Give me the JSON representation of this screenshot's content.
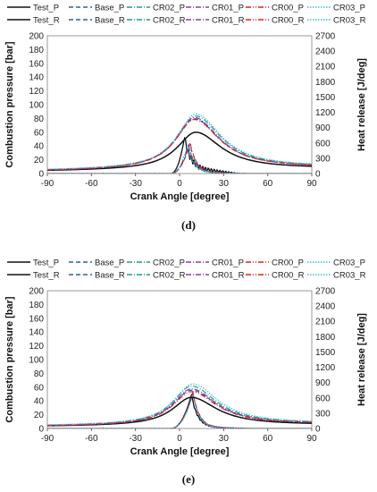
{
  "chart_data": [
    {
      "type": "line",
      "panel_label": "(d)",
      "xlabel": "Crank Angle [degree]",
      "ylabel": "Combustion pressure [bar]",
      "y2label": "Heat release [J/deg]",
      "xlim": [
        -90,
        90
      ],
      "ylim": [
        0,
        200
      ],
      "y2lim": [
        0,
        2700
      ],
      "xticks": [
        "-90",
        "-60",
        "-30",
        "0",
        "30",
        "60",
        "90"
      ],
      "yticks": [
        "0",
        "20",
        "40",
        "60",
        "80",
        "100",
        "120",
        "140",
        "160",
        "180",
        "200"
      ],
      "y2ticks": [
        "0",
        "300",
        "600",
        "900",
        "1200",
        "1500",
        "1800",
        "2100",
        "2400",
        "2700"
      ],
      "legend": [
        "Test_P",
        "Base_P",
        "CR02_P",
        "CR01_P",
        "CR00_P",
        "CR03_P",
        "Test_R",
        "Base_R",
        "CR02_R",
        "CR01_R",
        "CR00_R",
        "CR03_R"
      ],
      "pressure_series": [
        {
          "name": "Test_P",
          "peak": 58,
          "peak_x": 11,
          "base": 3.5,
          "end": 7
        },
        {
          "name": "Base_P",
          "peak": 77,
          "peak_x": 10,
          "base": 3.5,
          "end": 8
        },
        {
          "name": "CR02_P",
          "peak": 81,
          "peak_x": 11,
          "base": 4,
          "end": 8.5
        },
        {
          "name": "CR01_P",
          "peak": 79,
          "peak_x": 10,
          "base": 3.8,
          "end": 8
        },
        {
          "name": "CR00_P",
          "peak": 76,
          "peak_x": 10,
          "base": 3.5,
          "end": 8
        },
        {
          "name": "CR03_P",
          "peak": 84,
          "peak_x": 11,
          "base": 4.5,
          "end": 9
        }
      ],
      "heat_release_series": [
        {
          "name": "Test_R",
          "peak": 650,
          "peak_x": 3
        },
        {
          "name": "Base_R",
          "peak": 580,
          "peak_x": 7
        },
        {
          "name": "CR02_R",
          "peak": 540,
          "peak_x": 6
        },
        {
          "name": "CR01_R",
          "peak": 560,
          "peak_x": 6
        },
        {
          "name": "CR00_R",
          "peak": 600,
          "peak_x": 7
        },
        {
          "name": "CR03_R",
          "peak": 520,
          "peak_x": 5
        }
      ]
    },
    {
      "type": "line",
      "panel_label": "(e)",
      "xlabel": "Crank Angle [degree]",
      "ylabel": "Combustion pressure [bar]",
      "y2label": "Heat release [J/deg]",
      "xlim": [
        -90,
        90
      ],
      "ylim": [
        0,
        200
      ],
      "y2lim": [
        0,
        2700
      ],
      "xticks": [
        "-90",
        "-60",
        "-30",
        "0",
        "30",
        "60",
        "90"
      ],
      "yticks": [
        "0",
        "20",
        "40",
        "60",
        "80",
        "100",
        "120",
        "140",
        "160",
        "180",
        "200"
      ],
      "y2ticks": [
        "0",
        "300",
        "600",
        "900",
        "1200",
        "1500",
        "1800",
        "2100",
        "2400",
        "2700"
      ],
      "legend": [
        "Test_P",
        "Base_P",
        "CR02_P",
        "CR01_P",
        "CR00_P",
        "CR03_P",
        "Test_R",
        "Base_R",
        "CR02_R",
        "CR01_R",
        "CR00_R",
        "CR03_R"
      ],
      "pressure_series": [
        {
          "name": "Test_P",
          "peak": 44,
          "peak_x": 8,
          "base": 3,
          "end": 5
        },
        {
          "name": "Base_P",
          "peak": 54,
          "peak_x": 8,
          "base": 3,
          "end": 6
        },
        {
          "name": "CR02_P",
          "peak": 60,
          "peak_x": 8,
          "base": 3.5,
          "end": 6.5
        },
        {
          "name": "CR01_P",
          "peak": 56,
          "peak_x": 8,
          "base": 3.2,
          "end": 6
        },
        {
          "name": "CR00_P",
          "peak": 52,
          "peak_x": 8,
          "base": 3,
          "end": 5.8
        },
        {
          "name": "CR03_P",
          "peak": 63,
          "peak_x": 9,
          "base": 4,
          "end": 7
        }
      ],
      "heat_release_series": [
        {
          "name": "Test_R",
          "peak": 650,
          "peak_x": 8
        },
        {
          "name": "Base_R",
          "peak": 700,
          "peak_x": 9
        },
        {
          "name": "CR02_R",
          "peak": 680,
          "peak_x": 9
        },
        {
          "name": "CR01_R",
          "peak": 690,
          "peak_x": 9
        },
        {
          "name": "CR00_R",
          "peak": 710,
          "peak_x": 9
        },
        {
          "name": "CR03_R",
          "peak": 660,
          "peak_x": 9
        }
      ]
    }
  ],
  "series_style": {
    "Test": {
      "color": "#111111",
      "dash": ""
    },
    "Base": {
      "color": "#2f5fa8",
      "dash": "5,3"
    },
    "CR02": {
      "color": "#1a9e8a",
      "dash": "6,2,1,2"
    },
    "CR01": {
      "color": "#8a3da8",
      "dash": "6,2,1,2"
    },
    "CR00": {
      "color": "#e0201b",
      "dash": "6,2,1,2,1,2"
    },
    "CR03": {
      "color": "#33c0d8",
      "dash": "1.5,1.5"
    }
  }
}
